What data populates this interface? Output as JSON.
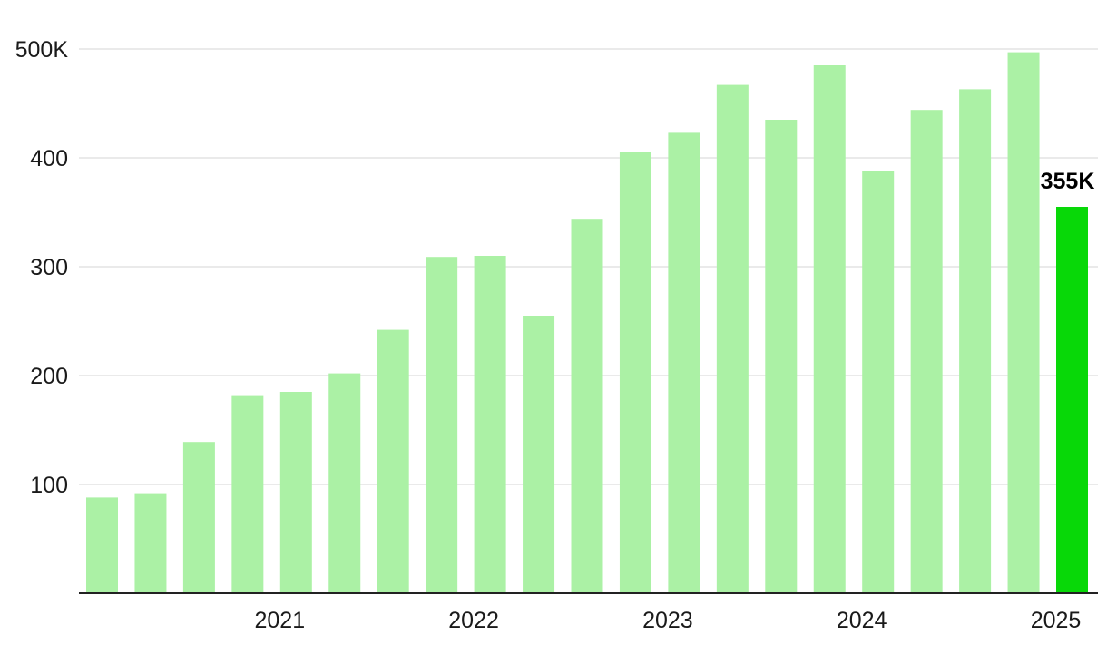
{
  "chart_data": {
    "type": "bar",
    "title": "",
    "xlabel": "",
    "ylabel": "",
    "ylim": [
      0,
      500
    ],
    "y_ticks": [
      100,
      200,
      300,
      400,
      500
    ],
    "y_tick_labels": [
      "100",
      "200",
      "300",
      "400",
      "500K"
    ],
    "x_tick_labels": [
      {
        "label": "2021",
        "bar_index": 4
      },
      {
        "label": "2022",
        "bar_index": 8
      },
      {
        "label": "2023",
        "bar_index": 12
      },
      {
        "label": "2024",
        "bar_index": 16
      },
      {
        "label": "2025",
        "bar_index": 20
      }
    ],
    "values": [
      88,
      92,
      139,
      182,
      185,
      202,
      242,
      309,
      310,
      255,
      344,
      405,
      423,
      467,
      435,
      485,
      388,
      444,
      463,
      497,
      355
    ],
    "highlight_index": 20,
    "highlight_label": "355K",
    "grid": true,
    "colors": {
      "bar": "#abf1a5",
      "highlight": "#08d808",
      "grid": "#e4e4e4",
      "axis": "#222222"
    }
  }
}
